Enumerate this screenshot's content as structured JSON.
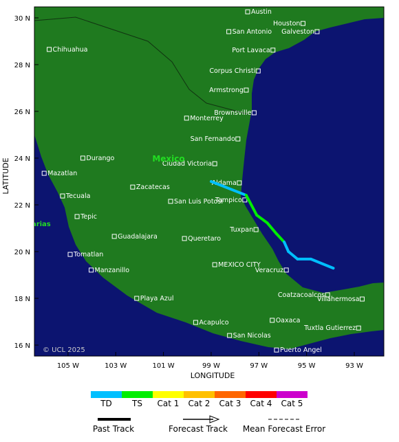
{
  "map": {
    "lon_range": [
      -106.41,
      -91.76
    ],
    "lat_range": [
      15.53,
      30.47
    ],
    "lon_ticks": [
      {
        "value": -105,
        "label": "105 W"
      },
      {
        "value": -103,
        "label": "103 W"
      },
      {
        "value": -101,
        "label": "101 W"
      },
      {
        "value": -99,
        "label": "99 W"
      },
      {
        "value": -97,
        "label": "97 W"
      },
      {
        "value": -95,
        "label": "95 W"
      },
      {
        "value": -93,
        "label": "93 W"
      }
    ],
    "lat_ticks": [
      {
        "value": 16,
        "label": "16 N"
      },
      {
        "value": 18,
        "label": "18 N"
      },
      {
        "value": 20,
        "label": "20 N"
      },
      {
        "value": 22,
        "label": "22 N"
      },
      {
        "value": 24,
        "label": "24 N"
      },
      {
        "value": 26,
        "label": "26 N"
      },
      {
        "value": 28,
        "label": "28 N"
      },
      {
        "value": 30,
        "label": "30 N"
      }
    ],
    "x_label": "LONGITUDE",
    "y_label": "LATITUDE",
    "region_label": "Mexico",
    "partial_label": "Marias",
    "copyright": "© UCL 2025",
    "cities": [
      {
        "name": "Austin",
        "lon": -97.47,
        "lat": 30.26
      },
      {
        "name": "Houston",
        "lon": -95.15,
        "lat": 29.76
      },
      {
        "name": "San Antonio",
        "lon": -98.26,
        "lat": 29.41
      },
      {
        "name": "Galveston",
        "lon": -94.56,
        "lat": 29.41
      },
      {
        "name": "Chihuahua",
        "lon": -105.79,
        "lat": 28.65
      },
      {
        "name": "Port Lavaca",
        "lon": -96.41,
        "lat": 28.62
      },
      {
        "name": "Corpus Christi",
        "lon": -97.03,
        "lat": 27.73
      },
      {
        "name": "Armstrong",
        "lon": -97.53,
        "lat": 26.91
      },
      {
        "name": "Brownsville",
        "lon": -97.2,
        "lat": 25.94
      },
      {
        "name": "Monterrey",
        "lon": -100.03,
        "lat": 25.71
      },
      {
        "name": "San Fernando",
        "lon": -97.88,
        "lat": 24.82
      },
      {
        "name": "Durango",
        "lon": -104.38,
        "lat": 24.0
      },
      {
        "name": "Ciudad Victoria",
        "lon": -98.85,
        "lat": 23.76
      },
      {
        "name": "Mazatlan",
        "lon": -106.0,
        "lat": 23.35
      },
      {
        "name": "Aldama",
        "lon": -97.82,
        "lat": 22.94
      },
      {
        "name": "Zacatecas",
        "lon": -102.29,
        "lat": 22.76
      },
      {
        "name": "Tampico",
        "lon": -97.59,
        "lat": 22.21
      },
      {
        "name": "Tecuala",
        "lon": -105.23,
        "lat": 22.38
      },
      {
        "name": "San Luis Potosi",
        "lon": -100.7,
        "lat": 22.15
      },
      {
        "name": "Tepic",
        "lon": -104.62,
        "lat": 21.5
      },
      {
        "name": "Tuxpan",
        "lon": -97.12,
        "lat": 20.94
      },
      {
        "name": "Guadalajara",
        "lon": -103.06,
        "lat": 20.65
      },
      {
        "name": "Queretaro",
        "lon": -100.12,
        "lat": 20.56
      },
      {
        "name": "Tomatlan",
        "lon": -104.91,
        "lat": 19.88
      },
      {
        "name": "MEXICO CITY",
        "lon": -98.85,
        "lat": 19.44
      },
      {
        "name": "Veracruz",
        "lon": -95.85,
        "lat": 19.21
      },
      {
        "name": "Manzanillo",
        "lon": -104.03,
        "lat": 19.21
      },
      {
        "name": "Coatzacoalcos",
        "lon": -94.12,
        "lat": 18.15
      },
      {
        "name": "Villahermosa",
        "lon": -92.67,
        "lat": 17.97
      },
      {
        "name": "Playa Azul",
        "lon": -102.12,
        "lat": 18.0
      },
      {
        "name": "Oaxaca",
        "lon": -96.44,
        "lat": 17.06
      },
      {
        "name": "Acapulco",
        "lon": -99.65,
        "lat": 16.97
      },
      {
        "name": "Tuxtla Gutierrez",
        "lon": -92.82,
        "lat": 16.73
      },
      {
        "name": "San Nicolas",
        "lon": -98.23,
        "lat": 16.41
      },
      {
        "name": "Puerto Angel",
        "lon": -96.26,
        "lat": 15.79
      }
    ],
    "track": [
      {
        "lon": -99.0,
        "lat": 23.0,
        "color": "#00bfff"
      },
      {
        "lon": -97.53,
        "lat": 22.41,
        "color": "#00bfff"
      },
      {
        "lon": -97.09,
        "lat": 21.56,
        "color": "#00ee00"
      },
      {
        "lon": -96.65,
        "lat": 21.23,
        "color": "#00ee00"
      },
      {
        "lon": -96.26,
        "lat": 20.76,
        "color": "#00ee00"
      },
      {
        "lon": -95.94,
        "lat": 20.41,
        "color": "#00ee00"
      },
      {
        "lon": -95.76,
        "lat": 20.0,
        "color": "#00bfff"
      },
      {
        "lon": -95.38,
        "lat": 19.68,
        "color": "#00bfff"
      },
      {
        "lon": -94.82,
        "lat": 19.68,
        "color": "#00bfff"
      },
      {
        "lon": -93.88,
        "lat": 19.29,
        "color": "#00bfff"
      }
    ]
  },
  "legend": {
    "intensity": [
      {
        "label": "TD",
        "color": "#00bfff"
      },
      {
        "label": "TS",
        "color": "#00ee00"
      },
      {
        "label": "Cat 1",
        "color": "#ffff00"
      },
      {
        "label": "Cat 2",
        "color": "#ffc000"
      },
      {
        "label": "Cat 3",
        "color": "#ff6600"
      },
      {
        "label": "Cat 4",
        "color": "#ff0000"
      },
      {
        "label": "Cat 5",
        "color": "#cc00cc"
      }
    ],
    "tracks": [
      "Past Track",
      "Forecast Track",
      "Mean Forecast Error"
    ]
  }
}
